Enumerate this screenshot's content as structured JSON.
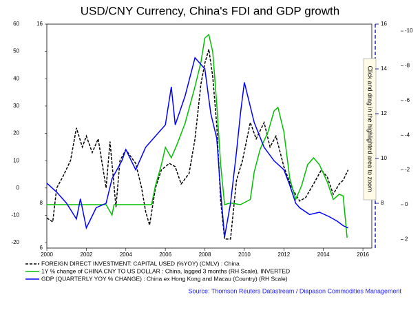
{
  "chart_data": {
    "type": "line",
    "title": "USD/CNY Currency, China's  FDI and GDP growth",
    "source": "Source: Thomson Reuters Datastream / Diapason Commodities Management",
    "annotation": "Click and drag in the highlighted area to zoom",
    "xlim": [
      2000,
      2016.45
    ],
    "xticks": [
      2000,
      2002,
      2004,
      2006,
      2008,
      2010,
      2012,
      2014,
      2016
    ],
    "ylim": [
      -22,
      60
    ],
    "yticks": [
      60,
      50,
      40,
      30,
      20,
      10,
      0,
      -10,
      -20
    ],
    "y2lim": [
      -10.4,
      2.5
    ],
    "y2_inverted": true,
    "y2ticks": [
      -10,
      -8,
      -6,
      -4,
      -2,
      0,
      2
    ],
    "y3lim": [
      6,
      16
    ],
    "y3ticks": [
      16,
      14,
      12,
      10,
      8
    ],
    "y3ticks_left": [
      16,
      8,
      6
    ],
    "series": [
      {
        "name": "FOREIGN DIRECT INVESTMENT: CAPITAL USED (%YOY) (CMLV) : China",
        "color": "#000000",
        "dash": true,
        "axis": "y",
        "x": [
          2000,
          2000.3,
          2000.5,
          2000.8,
          2001.2,
          2001.5,
          2001.8,
          2002.0,
          2002.3,
          2002.6,
          2003.0,
          2003.2,
          2003.5,
          2003.7,
          2004.0,
          2004.5,
          2004.8,
          2005.0,
          2005.2,
          2005.5,
          2005.8,
          2006.2,
          2006.5,
          2006.8,
          2007.2,
          2007.5,
          2007.8,
          2008.0,
          2008.2,
          2008.4,
          2008.6,
          2008.8,
          2009.0,
          2009.3,
          2009.6,
          2009.9,
          2010.3,
          2010.6,
          2011.0,
          2011.3,
          2011.6,
          2012.0,
          2012.4,
          2012.8,
          2013.1,
          2013.5,
          2013.9,
          2014.2,
          2014.5,
          2014.8,
          2015.0,
          2015.25
        ],
        "values": [
          -11,
          -12.4,
          0,
          4,
          10,
          22,
          15,
          19,
          13,
          18,
          0,
          17,
          -7,
          10,
          14,
          9,
          0,
          -8.6,
          -13.6,
          0,
          6.6,
          9,
          7.8,
          1.5,
          5.3,
          18,
          38,
          45.7,
          50.8,
          40.7,
          23,
          -4.8,
          -18.7,
          -18.7,
          2.8,
          10,
          24,
          18,
          24,
          15,
          19,
          7.8,
          0,
          -4.8,
          -3.5,
          1.5,
          6.6,
          4,
          -2.3,
          1.5,
          2.8,
          6.6
        ]
      },
      {
        "name": "1Y % change of CHINA CNY TO US DOLLAR : China, lagged 3 months (RH Scale), INVERTED",
        "color": "#00c000",
        "axis": "y2",
        "x": [
          2000,
          2003.0,
          2003.3,
          2003.4,
          2005.3,
          2005.5,
          2005.8,
          2006.0,
          2006.3,
          2006.6,
          2007.0,
          2007.5,
          2007.8,
          2008.0,
          2008.2,
          2008.4,
          2008.6,
          2008.8,
          2009.0,
          2009.3,
          2009.8,
          2010.3,
          2010.5,
          2010.8,
          2011.2,
          2011.5,
          2011.7,
          2012.0,
          2012.3,
          2012.6,
          2012.9,
          2013.2,
          2013.5,
          2013.8,
          2014.2,
          2014.5,
          2014.8,
          2015.0,
          2015.2
        ],
        "values": [
          0,
          0,
          0.6,
          0,
          0,
          -1.1,
          -2.3,
          -3.3,
          -2.7,
          -3.5,
          -4.7,
          -6.8,
          -8.2,
          -9.6,
          -9.8,
          -8.8,
          -5.8,
          -2.3,
          0,
          -0.1,
          0,
          -0.3,
          -1.9,
          -3.2,
          -4.2,
          -5.4,
          -5.6,
          -4.2,
          -1.5,
          -0.3,
          -1.1,
          -2.3,
          -2.7,
          -2.3,
          -1.3,
          -0.3,
          -0.6,
          -0.5,
          1.9
        ]
      },
      {
        "name": "GDP (QUARTERLY YOY % CHANGE) : China ex Hong Kong and Macau (Country) (RH Scale)",
        "color": "#0000ff",
        "axis": "y3",
        "x": [
          2000.0,
          2000.5,
          2001.0,
          2001.5,
          2001.7,
          2002.0,
          2002.5,
          2003.0,
          2003.3,
          2003.8,
          2004.0,
          2004.5,
          2005.0,
          2005.5,
          2006.0,
          2006.3,
          2006.5,
          2007.0,
          2007.5,
          2008.0,
          2008.3,
          2008.6,
          2008.8,
          2009.0,
          2009.3,
          2009.6,
          2009.8,
          2010.0,
          2010.5,
          2011.0,
          2011.5,
          2012.0,
          2012.3,
          2012.6,
          2012.8,
          2013.3,
          2013.8,
          2014.3,
          2014.7,
          2015.0,
          2015.25
        ],
        "values": [
          8.9,
          8.5,
          8.0,
          7.3,
          8.2,
          6.9,
          7.8,
          8.0,
          9.1,
          9.9,
          10.4,
          9.5,
          10.5,
          11.0,
          11.5,
          13.2,
          11.5,
          12.8,
          14.5,
          14.0,
          12.0,
          10.9,
          8.5,
          6.5,
          8.0,
          10.3,
          12.0,
          13.4,
          11.6,
          10.5,
          9.9,
          9.5,
          8.8,
          8.0,
          7.8,
          7.5,
          7.6,
          7.4,
          7.2,
          7.0,
          6.9
        ]
      }
    ]
  }
}
